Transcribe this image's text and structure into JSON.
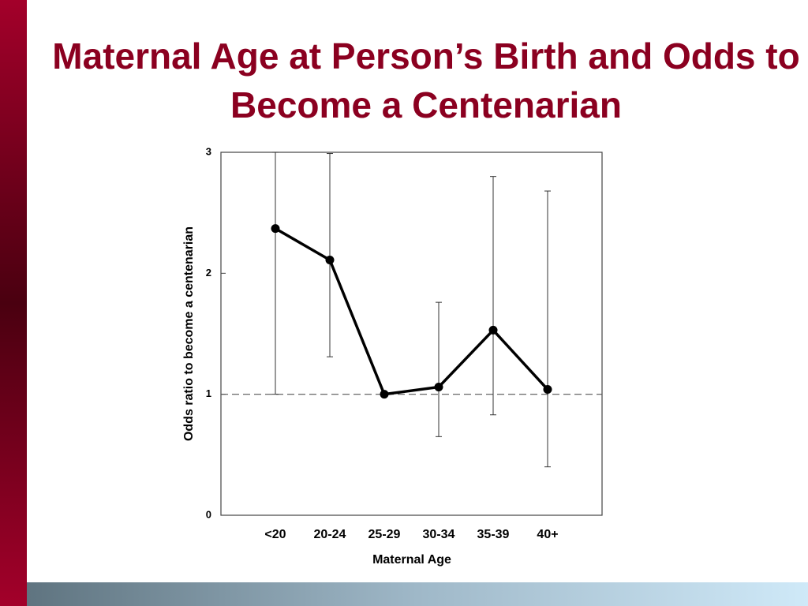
{
  "chart_data": {
    "type": "line",
    "title": "Maternal Age at Person’s Birth and Odds to Become a Centenarian",
    "x_label": "Maternal Age",
    "y_label": "Odds ratio to become a centenarian",
    "categories": [
      "<20",
      "20-24",
      "25-29",
      "30-34",
      "35-39",
      "40+"
    ],
    "series": [
      {
        "color": "#000000",
        "values": [
          2.37,
          2.11,
          1.0,
          1.06,
          1.53,
          1.04
        ],
        "lower": [
          1.0,
          1.31,
          null,
          0.65,
          0.83,
          0.4
        ],
        "upper": [
          3.0,
          2.99,
          null,
          1.76,
          2.8,
          2.68
        ]
      }
    ],
    "ylim": [
      0,
      3
    ],
    "yticks": [
      0,
      1,
      2,
      3
    ],
    "reference_line": 1
  }
}
